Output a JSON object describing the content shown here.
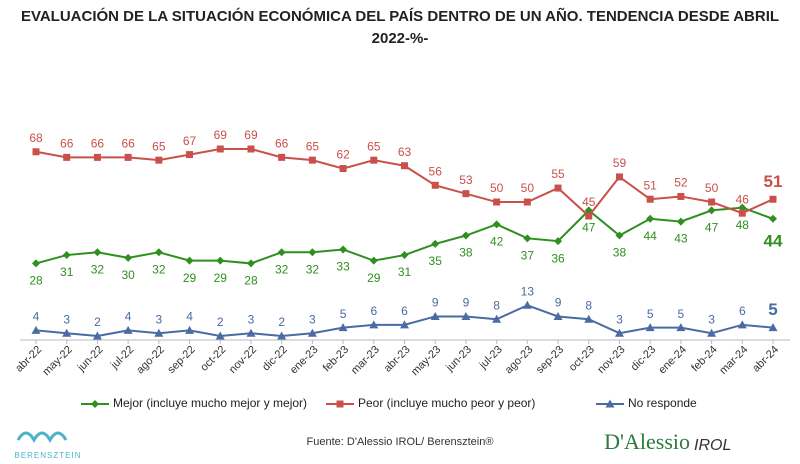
{
  "chart_data": {
    "type": "line",
    "title": "EVALUACIÓN DE LA SITUACIÓN ECONÓMICA DEL PAÍS DENTRO DE UN AÑO. TENDENCIA DESDE ABRIL 2022-%-",
    "categories": [
      "abr-22",
      "may-22",
      "jun-22",
      "jul-22",
      "ago-22",
      "sep-22",
      "oct-22",
      "nov-22",
      "dic-22",
      "ene-23",
      "feb-23",
      "mar-23",
      "abr-23",
      "may-23",
      "jun-23",
      "jul-23",
      "ago-23",
      "sep-23",
      "oct-23",
      "nov-23",
      "dic-23",
      "ene-24",
      "feb-24",
      "mar-24",
      "abr-24"
    ],
    "series": [
      {
        "name": "Mejor (incluye mucho mejor y mejor)",
        "color": "#2f8f1f",
        "marker": "diamond",
        "values": [
          28,
          31,
          32,
          30,
          32,
          29,
          29,
          28,
          32,
          32,
          33,
          29,
          31,
          35,
          38,
          42,
          37,
          36,
          47,
          38,
          44,
          43,
          47,
          48,
          44
        ]
      },
      {
        "name": "Peor (incluye mucho peor y peor)",
        "color": "#c9504b",
        "marker": "square",
        "values": [
          68,
          66,
          66,
          66,
          65,
          67,
          69,
          69,
          66,
          65,
          62,
          65,
          63,
          56,
          53,
          50,
          50,
          55,
          45,
          59,
          51,
          52,
          50,
          46,
          51
        ]
      },
      {
        "name": "No responde",
        "color": "#4a6ba3",
        "marker": "triangle",
        "values": [
          4,
          3,
          2,
          4,
          3,
          4,
          2,
          3,
          2,
          3,
          5,
          6,
          6,
          9,
          9,
          8,
          13,
          9,
          8,
          3,
          5,
          5,
          3,
          6,
          5
        ]
      }
    ],
    "source": "Fuente: D'Alessio IROL/ Berensztein®",
    "logo_left": "BERENSZTEIN",
    "logo_right": "D'Alessio",
    "logo_right_sub": "IROL"
  }
}
